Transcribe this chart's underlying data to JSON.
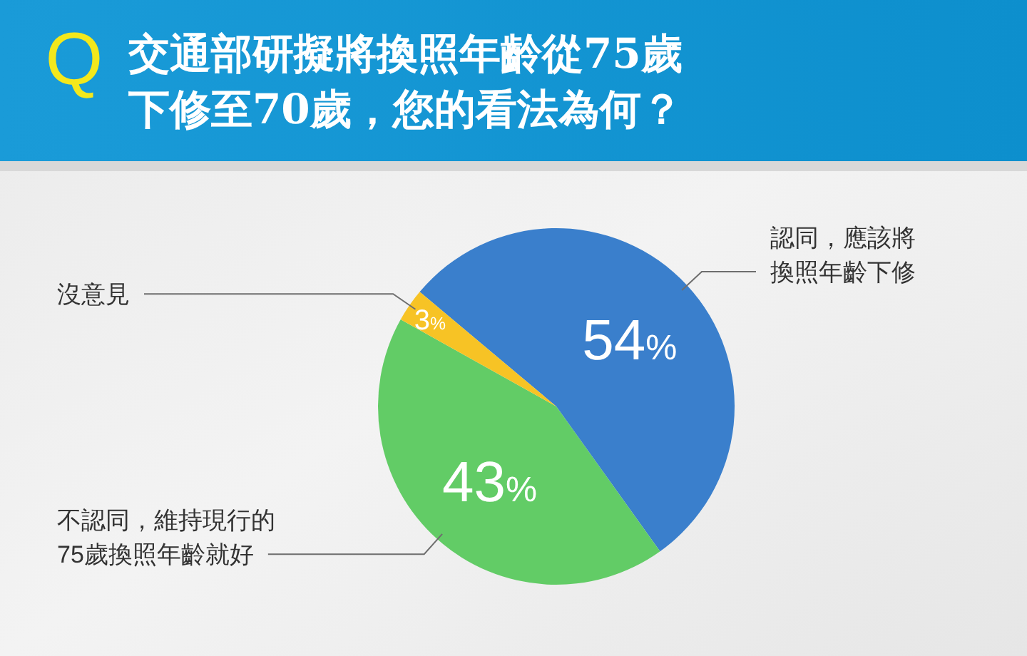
{
  "chart_data": {
    "type": "pie",
    "title": "交通部研擬將換照年齡從75歲下修至70歲，您的看法為何？",
    "annotations": [
      "Q"
    ],
    "categories": [
      "認同，應該將換照年齡下修",
      "不認同，維持現行的75歲換照年齡就好",
      "沒意見"
    ],
    "values": [
      54,
      43,
      3
    ],
    "colors": [
      "#3a7fcc",
      "#62cc66",
      "#f7c325"
    ],
    "value_labels": [
      "54%",
      "43%",
      "3%"
    ]
  }
}
